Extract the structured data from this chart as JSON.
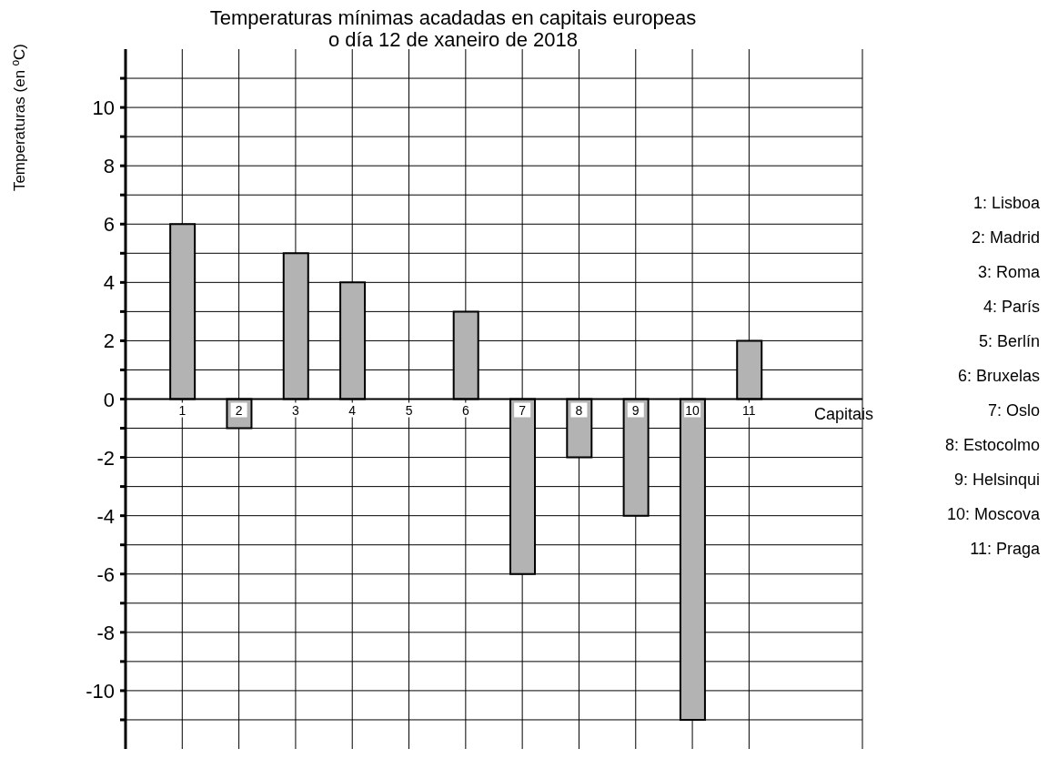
{
  "chart_data": {
    "type": "bar",
    "title": "Temperaturas mínimas acadadas en capitais europeas\no día 12 de xaneiro de 2018",
    "xlabel": "Capitais",
    "ylabel": "Temperaturas (en ºC)",
    "categories": [
      "1",
      "2",
      "3",
      "4",
      "5",
      "6",
      "7",
      "8",
      "9",
      "10",
      "11"
    ],
    "values": [
      6,
      -1,
      5,
      4,
      0,
      3,
      -6,
      -2,
      -4,
      -11,
      2
    ],
    "color": "#b3b3b3",
    "ylim": [
      -12,
      12
    ],
    "yticks": [
      {
        "value": -11,
        "label": null
      },
      -10,
      {
        "value": -9,
        "label": null
      },
      -8,
      {
        "value": -7,
        "label": null
      },
      -6,
      {
        "value": -5,
        "label": null
      },
      -4,
      {
        "value": -3,
        "label": null
      },
      -2,
      {
        "value": -1,
        "label": null
      },
      0,
      {
        "value": 1,
        "label": null
      },
      2,
      {
        "value": 3,
        "label": null
      },
      4,
      {
        "value": 5,
        "label": null
      },
      6,
      {
        "value": 7,
        "label": null
      },
      8,
      {
        "value": 9,
        "label": null
      },
      10,
      {
        "value": 11,
        "label": null
      }
    ],
    "grid": true,
    "annotations": [
      "1: Lisboa",
      "2: Madrid",
      "3: Roma",
      "4: París",
      "5: Berlín",
      "6: Bruxelas",
      "7: Oslo",
      "8: Estocolmo",
      "9: Helsinqui",
      "10: Moscova",
      "11: Praga"
    ]
  }
}
